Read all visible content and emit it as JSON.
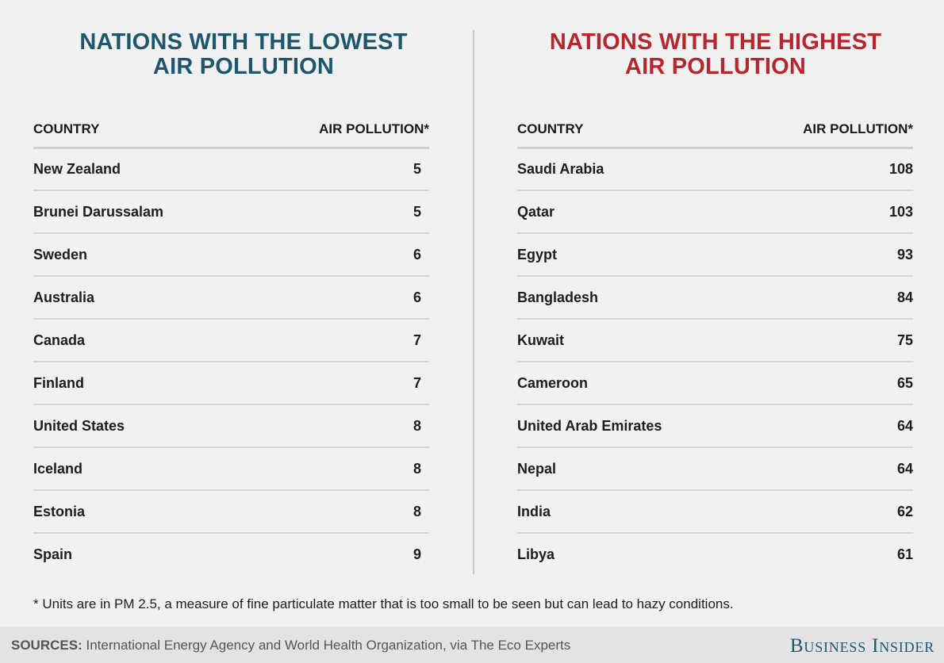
{
  "chart_data": [
    {
      "type": "table",
      "title_lines": [
        "NATIONS WITH THE LOWEST",
        "AIR POLLUTION"
      ],
      "columns": [
        "COUNTRY",
        "AIR POLLUTION*"
      ],
      "rows": [
        {
          "country": "New Zealand",
          "value": 5
        },
        {
          "country": "Brunei Darussalam",
          "value": 5
        },
        {
          "country": "Sweden",
          "value": 6
        },
        {
          "country": "Australia",
          "value": 6
        },
        {
          "country": "Canada",
          "value": 7
        },
        {
          "country": "Finland",
          "value": 7
        },
        {
          "country": "United States",
          "value": 8
        },
        {
          "country": "Iceland",
          "value": 8
        },
        {
          "country": "Estonia",
          "value": 8
        },
        {
          "country": "Spain",
          "value": 9
        }
      ],
      "title_color": "#1e566e"
    },
    {
      "type": "table",
      "title_lines": [
        "NATIONS WITH THE HIGHEST",
        "AIR POLLUTION"
      ],
      "columns": [
        "COUNTRY",
        "AIR POLLUTION*"
      ],
      "rows": [
        {
          "country": "Saudi Arabia",
          "value": 108
        },
        {
          "country": "Qatar",
          "value": 103
        },
        {
          "country": "Egypt",
          "value": 93
        },
        {
          "country": "Bangladesh",
          "value": 84
        },
        {
          "country": "Kuwait",
          "value": 75
        },
        {
          "country": "Cameroon",
          "value": 65
        },
        {
          "country": "United Arab Emirates",
          "value": 64
        },
        {
          "country": "Nepal",
          "value": 64
        },
        {
          "country": "India",
          "value": 62
        },
        {
          "country": "Libya",
          "value": 61
        }
      ],
      "title_color": "#b8262d"
    }
  ],
  "footnote": "* Units are in PM 2.5, a measure of fine particulate matter that is too small to be seen but can lead to hazy conditions.",
  "sources": {
    "label": "SOURCES:",
    "text": "International Energy Agency and World Health Organization, via The Eco Experts"
  },
  "brand": "Business Insider"
}
